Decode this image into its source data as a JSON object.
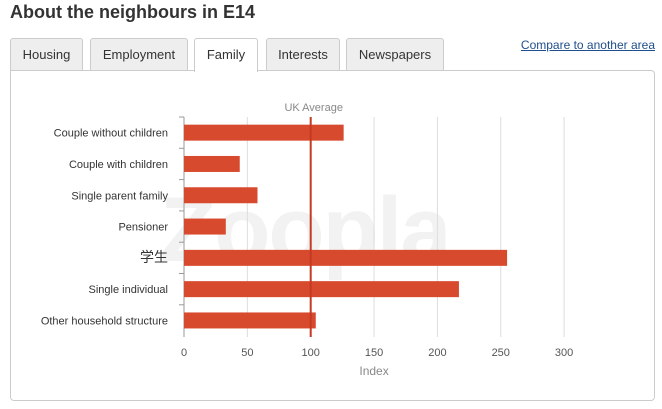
{
  "page": {
    "title": "About the neighbours in E14",
    "compare_link": "Compare to another area"
  },
  "tabs": [
    {
      "label": "Housing",
      "active": false
    },
    {
      "label": "Employment",
      "active": false
    },
    {
      "label": "Family",
      "active": true
    },
    {
      "label": "Interests",
      "active": false
    },
    {
      "label": "Newspapers",
      "active": false
    }
  ],
  "watermark": "Zoopla",
  "colors": {
    "bar": "#d84a2e",
    "reference_line": "#c43a22",
    "grid": "#dddddd"
  },
  "chart_data": {
    "type": "bar",
    "orientation": "horizontal",
    "categories": [
      "Couple without children",
      "Couple with children",
      "Single parent family",
      "Pensioner",
      "学生",
      "Single individual",
      "Other household structure"
    ],
    "values": [
      126,
      44,
      58,
      33,
      255,
      217,
      104
    ],
    "xlabel": "Index",
    "xlim": [
      0,
      300
    ],
    "xticks": [
      0,
      50,
      100,
      150,
      200,
      250,
      300
    ],
    "reference_line": {
      "value": 100,
      "label": "UK Average"
    },
    "grid": true
  }
}
